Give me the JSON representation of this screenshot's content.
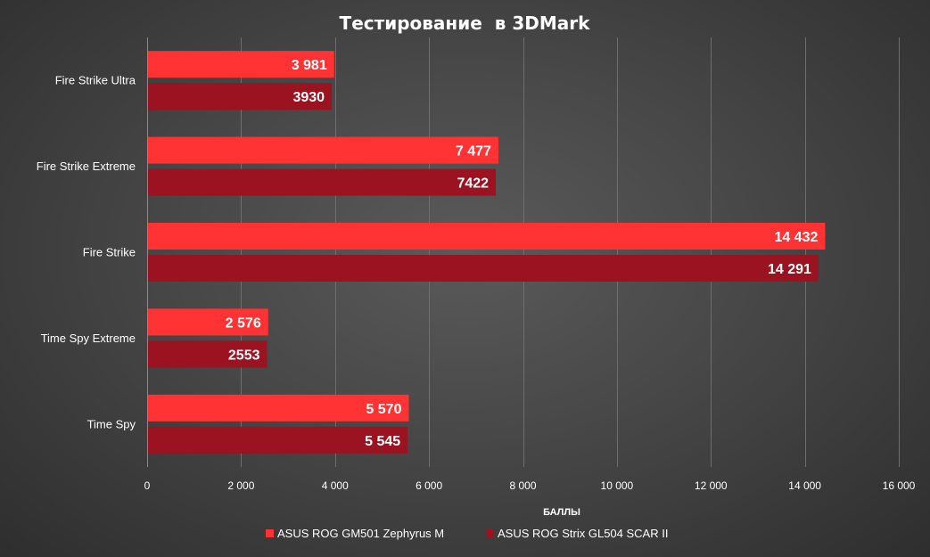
{
  "chart_data": {
    "type": "bar",
    "orientation": "horizontal",
    "title": "Тестирование  в 3DMark",
    "xlabel": "БАЛЛЫ",
    "ylabel": "",
    "xlim": [
      0,
      16000
    ],
    "ticks": [
      {
        "value": 0,
        "label": "0"
      },
      {
        "value": 2000,
        "label": "2 000"
      },
      {
        "value": 4000,
        "label": "4 000"
      },
      {
        "value": 6000,
        "label": "6 000"
      },
      {
        "value": 8000,
        "label": "8 000"
      },
      {
        "value": 10000,
        "label": "10 000"
      },
      {
        "value": 12000,
        "label": "12 000"
      },
      {
        "value": 14000,
        "label": "14 000"
      },
      {
        "value": 16000,
        "label": "16 000"
      }
    ],
    "grid": true,
    "legend_position": "bottom",
    "categories": [
      "Fire Strike Ultra",
      "Fire Strike Extreme",
      "Fire Strike",
      "Time Spy Extreme",
      "Time Spy"
    ],
    "series": [
      {
        "name": "ASUS ROG GM501 Zephyrus M",
        "color": "#ff3333",
        "values": [
          3981,
          7477,
          14432,
          2576,
          5570
        ],
        "data_labels": [
          "3 981",
          "7 477",
          "14 432",
          "2 576",
          "5 570"
        ]
      },
      {
        "name": "ASUS ROG Strix GL504 SCAR II",
        "color": "#9b1220",
        "values": [
          3930,
          7422,
          14291,
          2553,
          5545
        ],
        "data_labels": [
          "3930",
          "7422",
          "14 291",
          "2553",
          "5 545"
        ]
      }
    ]
  }
}
